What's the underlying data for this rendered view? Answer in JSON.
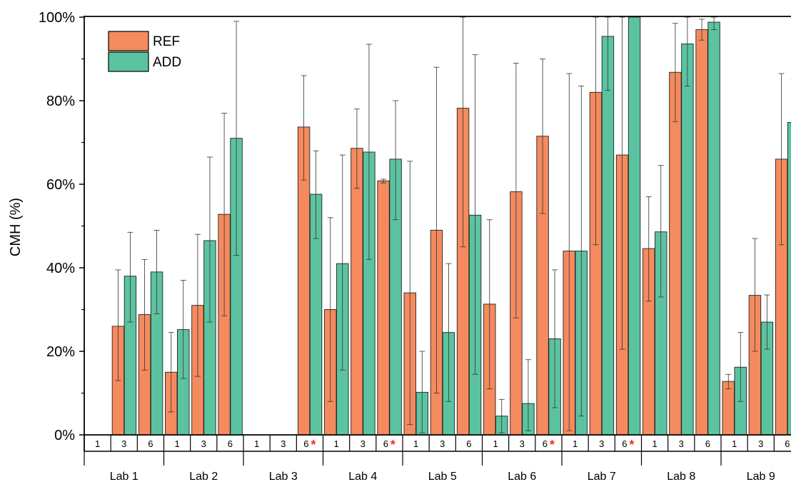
{
  "chart_data": {
    "type": "bar",
    "ylabel": "CMH (%)",
    "ylim": [
      0,
      100
    ],
    "yticks": [
      "0%",
      "20%",
      "40%",
      "60%",
      "80%",
      "100%"
    ],
    "legend": {
      "placement": "top-left",
      "entries": [
        "REF",
        "ADD"
      ]
    },
    "colors": {
      "REF": "#f58a5e",
      "ADD": "#5cc3a1",
      "star": "#ff2a2a"
    },
    "groups": [
      {
        "label": "Lab 1",
        "categories": [
          {
            "label": "1",
            "star": false,
            "REF": null,
            "ADD": null
          },
          {
            "label": "3",
            "star": false,
            "REF": {
              "value": 26,
              "err": [
                13,
                39.5
              ]
            },
            "ADD": {
              "value": 38,
              "err": [
                27,
                48.5
              ]
            }
          },
          {
            "label": "6",
            "star": false,
            "REF": {
              "value": 28.8,
              "err": [
                15.5,
                42
              ]
            },
            "ADD": {
              "value": 39,
              "err": [
                29,
                49
              ]
            }
          }
        ]
      },
      {
        "label": "Lab 2",
        "categories": [
          {
            "label": "1",
            "star": false,
            "REF": {
              "value": 15,
              "err": [
                5.5,
                24.5
              ]
            },
            "ADD": {
              "value": 25.2,
              "err": [
                13.5,
                37
              ]
            }
          },
          {
            "label": "3",
            "star": false,
            "REF": {
              "value": 31,
              "err": [
                14,
                48
              ]
            },
            "ADD": {
              "value": 46.5,
              "err": [
                27,
                66.5
              ]
            }
          },
          {
            "label": "6",
            "star": false,
            "REF": {
              "value": 52.8,
              "err": [
                28.5,
                77
              ]
            },
            "ADD": {
              "value": 71,
              "err": [
                43,
                99
              ]
            }
          }
        ]
      },
      {
        "label": "Lab 3",
        "categories": [
          {
            "label": "1",
            "star": false,
            "REF": null,
            "ADD": null
          },
          {
            "label": "3",
            "star": false,
            "REF": null,
            "ADD": null
          },
          {
            "label": "6",
            "star": true,
            "REF": {
              "value": 73.7,
              "err": [
                61,
                86
              ]
            },
            "ADD": {
              "value": 57.6,
              "err": [
                47,
                68
              ]
            }
          }
        ]
      },
      {
        "label": "Lab 4",
        "categories": [
          {
            "label": "1",
            "star": false,
            "REF": {
              "value": 30,
              "err": [
                8,
                52
              ]
            },
            "ADD": {
              "value": 41,
              "err": [
                15.5,
                67
              ]
            }
          },
          {
            "label": "3",
            "star": false,
            "REF": {
              "value": 68.6,
              "err": [
                59,
                78
              ]
            },
            "ADD": {
              "value": 67.7,
              "err": [
                42,
                93.5
              ]
            }
          },
          {
            "label": "6",
            "star": true,
            "REF": {
              "value": 60.8,
              "err": [
                60.3,
                61.2
              ]
            },
            "ADD": {
              "value": 66,
              "err": [
                51.5,
                80
              ]
            }
          }
        ]
      },
      {
        "label": "Lab 5",
        "categories": [
          {
            "label": "1",
            "star": false,
            "REF": {
              "value": 34,
              "err": [
                2.5,
                65.5
              ]
            },
            "ADD": {
              "value": 10.2,
              "err": [
                0.5,
                20
              ]
            }
          },
          {
            "label": "3",
            "star": false,
            "REF": {
              "value": 49,
              "err": [
                10,
                88
              ]
            },
            "ADD": {
              "value": 24.5,
              "err": [
                8,
                41
              ]
            }
          },
          {
            "label": "6",
            "star": false,
            "REF": {
              "value": 78.2,
              "err": [
                45,
                100
              ]
            },
            "ADD": {
              "value": 52.6,
              "err": [
                14.5,
                91
              ]
            }
          }
        ]
      },
      {
        "label": "Lab 6",
        "categories": [
          {
            "label": "1",
            "star": false,
            "REF": {
              "value": 31.3,
              "err": [
                11,
                51.5
              ]
            },
            "ADD": {
              "value": 4.5,
              "err": [
                0.5,
                8.5
              ]
            }
          },
          {
            "label": "3",
            "star": false,
            "REF": {
              "value": 58.2,
              "err": [
                28,
                89
              ]
            },
            "ADD": {
              "value": 7.5,
              "err": [
                1,
                18
              ]
            }
          },
          {
            "label": "6",
            "star": true,
            "REF": {
              "value": 71.5,
              "err": [
                53,
                90
              ]
            },
            "ADD": {
              "value": 23,
              "err": [
                6.5,
                39.5
              ]
            }
          }
        ]
      },
      {
        "label": "Lab 7",
        "categories": [
          {
            "label": "1",
            "star": false,
            "REF": {
              "value": 44,
              "err": [
                1,
                86.5
              ]
            },
            "ADD": {
              "value": 44,
              "err": [
                4.5,
                83.5
              ]
            }
          },
          {
            "label": "3",
            "star": false,
            "REF": {
              "value": 82,
              "err": [
                45.5,
                100
              ]
            },
            "ADD": {
              "value": 95.4,
              "err": [
                82.5,
                100
              ]
            }
          },
          {
            "label": "6",
            "star": true,
            "REF": {
              "value": 67,
              "err": [
                20.5,
                100
              ]
            },
            "ADD": {
              "value": 100,
              "err": [
                100,
                100
              ]
            }
          }
        ]
      },
      {
        "label": "Lab 8",
        "categories": [
          {
            "label": "1",
            "star": false,
            "REF": {
              "value": 44.6,
              "err": [
                32,
                57
              ]
            },
            "ADD": {
              "value": 48.6,
              "err": [
                33,
                64.5
              ]
            }
          },
          {
            "label": "3",
            "star": false,
            "REF": {
              "value": 86.8,
              "err": [
                75,
                98.5
              ]
            },
            "ADD": {
              "value": 93.6,
              "err": [
                83.5,
                100
              ]
            }
          },
          {
            "label": "6",
            "star": false,
            "REF": {
              "value": 97,
              "err": [
                94.5,
                99.5
              ]
            },
            "ADD": {
              "value": 98.8,
              "err": [
                97,
                100
              ]
            }
          }
        ]
      },
      {
        "label": "Lab 9",
        "categories": [
          {
            "label": "1",
            "star": false,
            "REF": {
              "value": 12.8,
              "err": [
                11,
                14.5
              ]
            },
            "ADD": {
              "value": 16.2,
              "err": [
                8,
                24.5
              ]
            }
          },
          {
            "label": "3",
            "star": false,
            "REF": {
              "value": 33.4,
              "err": [
                20,
                47
              ]
            },
            "ADD": {
              "value": 27,
              "err": [
                20.5,
                33.5
              ]
            }
          },
          {
            "label": "6",
            "star": false,
            "REF": {
              "value": 66,
              "err": [
                45.5,
                86.5
              ]
            },
            "ADD": {
              "value": 74.8,
              "err": [
                64.5,
                85
              ]
            }
          }
        ]
      }
    ]
  }
}
